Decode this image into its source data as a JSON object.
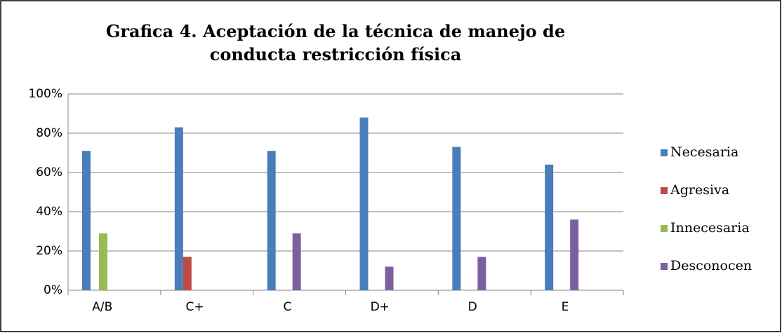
{
  "chart_data": {
    "type": "bar",
    "title": "Grafica 4. Aceptación de la técnica de manejo de conducta restricción física",
    "categories": [
      "A/B",
      "C+",
      "C",
      "D+",
      "D",
      "E"
    ],
    "series": [
      {
        "name": "Necesaria",
        "color": "#4a7ebb",
        "values": [
          71,
          83,
          71,
          88,
          73,
          64
        ]
      },
      {
        "name": "Agresiva",
        "color": "#be4b48",
        "values": [
          null,
          17,
          null,
          null,
          null,
          null
        ]
      },
      {
        "name": "Innecesaria",
        "color": "#98b954",
        "values": [
          29,
          null,
          null,
          null,
          null,
          null
        ]
      },
      {
        "name": "Desconocen",
        "color": "#7d60a0",
        "values": [
          null,
          null,
          29,
          12,
          17,
          36
        ]
      }
    ],
    "ylim": [
      0,
      100
    ],
    "yticks": [
      {
        "value": 0,
        "label": "0%"
      },
      {
        "value": 20,
        "label": "20%"
      },
      {
        "value": 40,
        "label": "40%"
      },
      {
        "value": 60,
        "label": "60%"
      },
      {
        "value": 80,
        "label": "80%"
      },
      {
        "value": 100,
        "label": "100%"
      }
    ],
    "grid": true,
    "legend": "right"
  }
}
